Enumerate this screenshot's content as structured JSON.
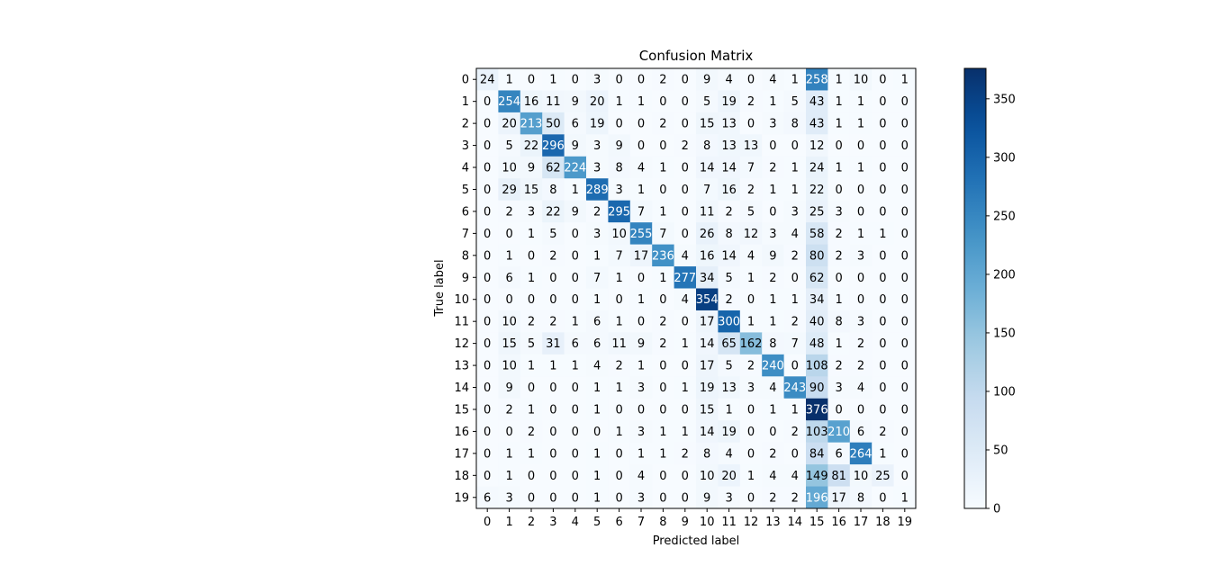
{
  "chart_data": {
    "type": "heatmap",
    "title": "Confusion Matrix",
    "xlabel": "Predicted label",
    "ylabel": "True label",
    "x_categories": [
      "0",
      "1",
      "2",
      "3",
      "4",
      "5",
      "6",
      "7",
      "8",
      "9",
      "10",
      "11",
      "12",
      "13",
      "14",
      "15",
      "16",
      "17",
      "18",
      "19"
    ],
    "y_categories": [
      "0",
      "1",
      "2",
      "3",
      "4",
      "5",
      "6",
      "7",
      "8",
      "9",
      "10",
      "11",
      "12",
      "13",
      "14",
      "15",
      "16",
      "17",
      "18",
      "19"
    ],
    "values": [
      [
        24,
        1,
        0,
        1,
        0,
        3,
        0,
        0,
        2,
        0,
        9,
        4,
        0,
        4,
        1,
        258,
        1,
        10,
        0,
        1
      ],
      [
        0,
        254,
        16,
        11,
        9,
        20,
        1,
        1,
        0,
        0,
        5,
        19,
        2,
        1,
        5,
        43,
        1,
        1,
        0,
        0
      ],
      [
        0,
        20,
        213,
        50,
        6,
        19,
        0,
        0,
        2,
        0,
        15,
        13,
        0,
        3,
        8,
        43,
        1,
        1,
        0,
        0
      ],
      [
        0,
        5,
        22,
        296,
        9,
        3,
        9,
        0,
        0,
        2,
        8,
        13,
        13,
        0,
        0,
        12,
        0,
        0,
        0,
        0
      ],
      [
        0,
        10,
        9,
        62,
        224,
        3,
        8,
        4,
        1,
        0,
        14,
        14,
        7,
        2,
        1,
        24,
        1,
        1,
        0,
        0
      ],
      [
        0,
        29,
        15,
        8,
        1,
        289,
        3,
        1,
        0,
        0,
        7,
        16,
        2,
        1,
        1,
        22,
        0,
        0,
        0,
        0
      ],
      [
        0,
        2,
        3,
        22,
        9,
        2,
        295,
        7,
        1,
        0,
        11,
        2,
        5,
        0,
        3,
        25,
        3,
        0,
        0,
        0
      ],
      [
        0,
        0,
        1,
        5,
        0,
        3,
        10,
        255,
        7,
        0,
        26,
        8,
        12,
        3,
        4,
        58,
        2,
        1,
        1,
        0
      ],
      [
        0,
        1,
        0,
        2,
        0,
        1,
        7,
        17,
        236,
        4,
        16,
        14,
        4,
        9,
        2,
        80,
        2,
        3,
        0,
        0
      ],
      [
        0,
        6,
        1,
        0,
        0,
        7,
        1,
        0,
        1,
        277,
        34,
        5,
        1,
        2,
        0,
        62,
        0,
        0,
        0,
        0
      ],
      [
        0,
        0,
        0,
        0,
        0,
        1,
        0,
        1,
        0,
        4,
        354,
        2,
        0,
        1,
        1,
        34,
        1,
        0,
        0,
        0
      ],
      [
        0,
        10,
        2,
        2,
        1,
        6,
        1,
        0,
        2,
        0,
        17,
        300,
        1,
        1,
        2,
        40,
        8,
        3,
        0,
        0
      ],
      [
        0,
        15,
        5,
        31,
        6,
        6,
        11,
        9,
        2,
        1,
        14,
        65,
        162,
        8,
        7,
        48,
        1,
        2,
        0,
        0
      ],
      [
        0,
        10,
        1,
        1,
        1,
        4,
        2,
        1,
        0,
        0,
        17,
        5,
        2,
        240,
        0,
        108,
        2,
        2,
        0,
        0
      ],
      [
        0,
        9,
        0,
        0,
        0,
        1,
        1,
        3,
        0,
        1,
        19,
        13,
        3,
        4,
        243,
        90,
        3,
        4,
        0,
        0
      ],
      [
        0,
        2,
        1,
        0,
        0,
        1,
        0,
        0,
        0,
        0,
        15,
        1,
        0,
        1,
        1,
        376,
        0,
        0,
        0,
        0
      ],
      [
        0,
        0,
        2,
        0,
        0,
        0,
        1,
        3,
        1,
        1,
        14,
        19,
        0,
        0,
        2,
        103,
        210,
        6,
        2,
        0
      ],
      [
        0,
        1,
        1,
        0,
        0,
        1,
        0,
        1,
        1,
        2,
        8,
        4,
        0,
        2,
        0,
        84,
        6,
        264,
        1,
        0
      ],
      [
        0,
        1,
        0,
        0,
        0,
        1,
        0,
        4,
        0,
        0,
        10,
        20,
        1,
        4,
        4,
        149,
        81,
        10,
        25,
        0
      ],
      [
        6,
        3,
        0,
        0,
        0,
        1,
        0,
        3,
        0,
        0,
        9,
        3,
        0,
        2,
        2,
        196,
        17,
        8,
        0,
        1
      ]
    ],
    "colormap": "Blues",
    "colorbar": {
      "vmin": 0,
      "vmax": 376,
      "ticks": [
        0,
        50,
        100,
        150,
        200,
        250,
        300,
        350
      ]
    },
    "text_color_light": "#ffffff",
    "text_color_dark": "#000000",
    "legend": "none",
    "grid": false
  }
}
